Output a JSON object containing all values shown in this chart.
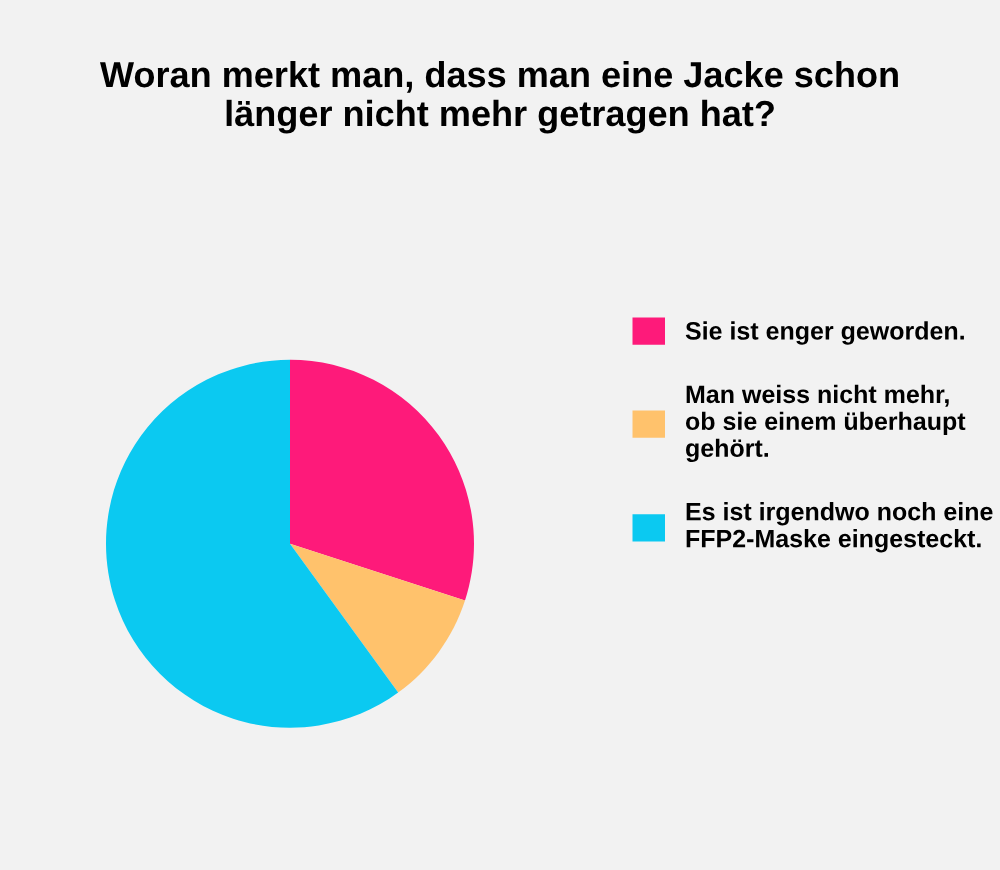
{
  "chart_data": {
    "type": "pie",
    "title": "Woran merkt man, dass man eine Jacke schon\nlänger nicht mehr getragen hat?",
    "categories": [
      "Sie ist enger geworden.",
      "Man weiss nicht mehr,\nob sie einem überhaupt\ngehört.",
      "Es ist irgendwo noch eine\nFFP2-Maske eingesteckt."
    ],
    "values": [
      30,
      10,
      60
    ],
    "colors": [
      "#fe1a7a",
      "#ffc26c",
      "#0bc9f1"
    ],
    "legend": "right"
  }
}
